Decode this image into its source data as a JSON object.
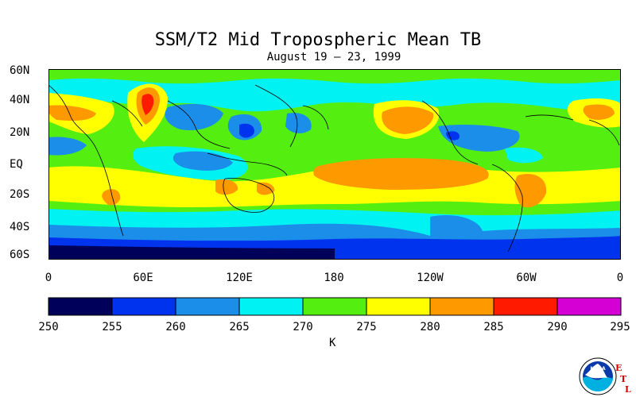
{
  "title": "SSM/T2 Mid Tropospheric Mean TB",
  "subtitle": "August 19 – 23, 1999",
  "lat_labels": [
    "60N",
    "40N",
    "20N",
    "EQ",
    "20S",
    "40S",
    "60S"
  ],
  "lat_values": [
    60,
    40,
    20,
    0,
    -20,
    -40,
    -60
  ],
  "lon_labels": [
    "0",
    "60E",
    "120E",
    "180",
    "120W",
    "60W",
    "0"
  ],
  "lon_values": [
    0,
    60,
    120,
    180,
    240,
    300,
    360
  ],
  "colorbar": {
    "ticks": [
      "250",
      "255",
      "260",
      "265",
      "270",
      "275",
      "280",
      "285",
      "290",
      "295"
    ],
    "colors": [
      "#00005a",
      "#0033ee",
      "#1a8ee8",
      "#00f2f2",
      "#55ee11",
      "#ffff00",
      "#ff9900",
      "#ff1a00",
      "#d400d4"
    ],
    "unit": "K"
  },
  "logo": {
    "text": "NOAA",
    "letters": [
      "E",
      "T",
      "L"
    ]
  }
}
